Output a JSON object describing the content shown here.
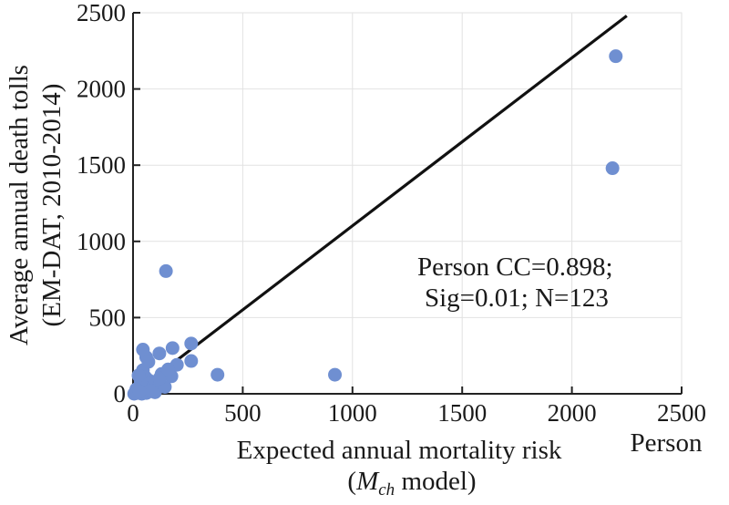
{
  "chart_data": {
    "type": "scatter",
    "xlabel": "Expected annual mortality risk",
    "xlabel_line2": {
      "pre": "(",
      "italic": "M",
      "sub": "ch",
      "post": " model)"
    },
    "xunit": "Person",
    "ylabel_line1": "Average annual death tolls",
    "ylabel_line2": "(EM-DAT, 2010-2014)",
    "xlim": [
      0,
      2500
    ],
    "ylim": [
      0,
      2500
    ],
    "xticks": [
      0,
      500,
      1000,
      1500,
      2000,
      2500
    ],
    "yticks": [
      0,
      500,
      1000,
      1500,
      2000,
      2500
    ],
    "grid": true,
    "annotation": [
      "Person CC=0.898;",
      "Sig=0.01; N=123"
    ],
    "fit_line": {
      "x": [
        0,
        2250
      ],
      "y": [
        0,
        2480
      ],
      "color": "#111111"
    },
    "marker_color": "#6f8fd1",
    "series": [
      {
        "x": [
          2200,
          2185,
          150,
          920,
          385,
          265,
          265,
          180,
          175,
          120,
          130,
          60,
          45,
          45,
          55,
          70,
          80,
          40,
          30,
          50,
          65,
          90,
          20,
          10,
          35,
          25,
          40,
          60,
          100,
          80,
          15,
          5,
          200,
          145,
          120,
          160,
          70,
          30
        ],
        "y": [
          2215,
          1480,
          805,
          125,
          125,
          330,
          215,
          300,
          115,
          265,
          130,
          240,
          290,
          155,
          110,
          90,
          70,
          60,
          40,
          20,
          10,
          30,
          5,
          10,
          80,
          120,
          0,
          5,
          10,
          20,
          30,
          0,
          190,
          45,
          100,
          160,
          210,
          15
        ]
      }
    ]
  }
}
